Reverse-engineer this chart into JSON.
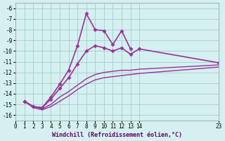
{
  "xlabel": "Windchill (Refroidissement éolien,°C)",
  "bg_color": "#d4f0f0",
  "line_color": "#993399",
  "grid_color": "#aacccc",
  "xlim": [
    0,
    23
  ],
  "ylim": [
    -16.5,
    -5.5
  ],
  "yticks": [
    -6,
    -7,
    -8,
    -9,
    -10,
    -11,
    -12,
    -13,
    -14,
    -15,
    -16
  ],
  "xticks": [
    0,
    1,
    2,
    3,
    4,
    5,
    6,
    7,
    8,
    9,
    10,
    11,
    12,
    13,
    14,
    23
  ],
  "xtick_labels": [
    "0",
    "1",
    "2",
    "3",
    "4",
    "5",
    "6",
    "7",
    "8",
    "9",
    "10",
    "11",
    "12",
    "13",
    "14",
    "23"
  ],
  "lines": [
    {
      "x": [
        1,
        2,
        3,
        4,
        5,
        6,
        7,
        8,
        9,
        10,
        11,
        12,
        13
      ],
      "y": [
        -14.7,
        -15.2,
        -15.3,
        -14.3,
        -13.1,
        -11.8,
        -9.5,
        -6.5,
        -8.0,
        -8.1,
        -9.4,
        -8.1,
        -9.8
      ],
      "marker": "D",
      "lw": 1.2,
      "ms": 2.5
    },
    {
      "x": [
        1,
        2,
        3,
        4,
        5,
        6,
        7,
        8,
        9,
        10,
        11,
        12,
        13,
        14,
        23
      ],
      "y": [
        -14.7,
        -15.2,
        -15.3,
        -14.5,
        -13.5,
        -12.5,
        -11.2,
        -10.0,
        -9.5,
        -9.7,
        -10.0,
        -9.7,
        -10.3,
        -9.8,
        -11.1
      ],
      "marker": "D",
      "lw": 1.2,
      "ms": 2.5
    },
    {
      "x": [
        1,
        2,
        3,
        4,
        5,
        6,
        7,
        8,
        9,
        10,
        11,
        12,
        13,
        14,
        23
      ],
      "y": [
        -14.7,
        -15.3,
        -15.5,
        -15.2,
        -14.7,
        -14.2,
        -13.6,
        -13.1,
        -12.7,
        -12.5,
        -12.4,
        -12.3,
        -12.2,
        -12.1,
        -11.5
      ],
      "marker": null,
      "lw": 1.0,
      "ms": 0
    },
    {
      "x": [
        1,
        2,
        3,
        4,
        5,
        6,
        7,
        8,
        9,
        10,
        11,
        12,
        13,
        14,
        23
      ],
      "y": [
        -14.7,
        -15.2,
        -15.4,
        -15.0,
        -14.3,
        -13.8,
        -13.2,
        -12.6,
        -12.2,
        -12.0,
        -11.9,
        -11.8,
        -11.8,
        -11.7,
        -11.3
      ],
      "marker": null,
      "lw": 1.0,
      "ms": 0
    }
  ]
}
